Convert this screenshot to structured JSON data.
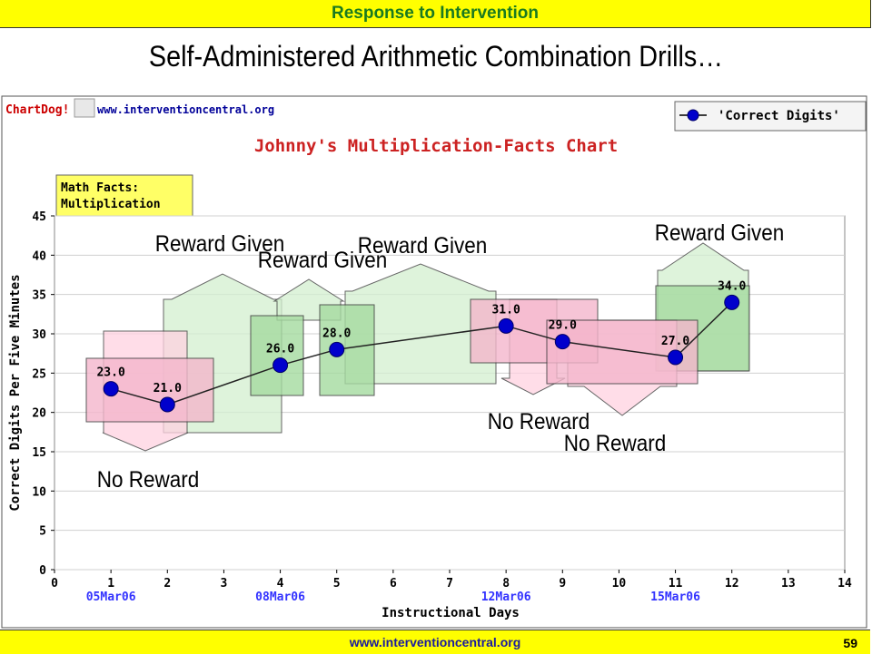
{
  "header": {
    "title": "Response to Intervention"
  },
  "slide_title": "Self-Administered Arithmetic Combination Drills…",
  "footer": {
    "url": "www.interventioncentral.org",
    "page": "59"
  },
  "branding": {
    "logo": "ChartDog!",
    "site": "www.interventioncentral.org"
  },
  "info_box": {
    "line1": "Math Facts:",
    "line2": "Multiplication"
  },
  "annotations": [
    {
      "text": "Reward Given",
      "kind": "reward"
    },
    {
      "text": "Reward Given",
      "kind": "reward"
    },
    {
      "text": "Reward Given",
      "kind": "reward"
    },
    {
      "text": "Reward Given",
      "kind": "reward"
    },
    {
      "text": "No Reward",
      "kind": "no-reward"
    },
    {
      "text": "No Reward",
      "kind": "no-reward"
    },
    {
      "text": "No Reward",
      "kind": "no-reward"
    }
  ],
  "colors": {
    "reward": "#d4efd0",
    "reward_dark": "#a5dba0",
    "no_reward": "#ffd2e1",
    "no_reward_dark": "#f4b6cc",
    "series": "#0000cc",
    "date_labels": "#3333ff",
    "title": "#cc2222"
  },
  "chart_data": {
    "type": "line",
    "title": "Johnny's Multiplication-Facts Chart",
    "xlabel": "Instructional Days",
    "ylabel": "Correct Digits Per Five Minutes",
    "xlim": [
      0,
      14
    ],
    "ylim": [
      0,
      45
    ],
    "xticks": [
      0,
      1,
      2,
      3,
      4,
      5,
      6,
      7,
      8,
      9,
      10,
      11,
      12,
      13,
      14
    ],
    "yticks": [
      0,
      5,
      10,
      15,
      20,
      25,
      30,
      35,
      40,
      45
    ],
    "date_labels": [
      {
        "x": 1,
        "label": "05Mar06"
      },
      {
        "x": 4,
        "label": "08Mar06"
      },
      {
        "x": 8,
        "label": "12Mar06"
      },
      {
        "x": 11,
        "label": "15Mar06"
      }
    ],
    "legend": {
      "position": "top-right"
    },
    "series": [
      {
        "name": "'Correct Digits'",
        "x": [
          1,
          2,
          4,
          5,
          8,
          9,
          11,
          12
        ],
        "y": [
          23.0,
          21.0,
          26.0,
          28.0,
          31.0,
          29.0,
          27.0,
          34.0
        ],
        "labels": [
          "23.0",
          "21.0",
          "26.0",
          "28.0",
          "31.0",
          "29.0",
          "27.0",
          "34.0"
        ]
      }
    ]
  }
}
